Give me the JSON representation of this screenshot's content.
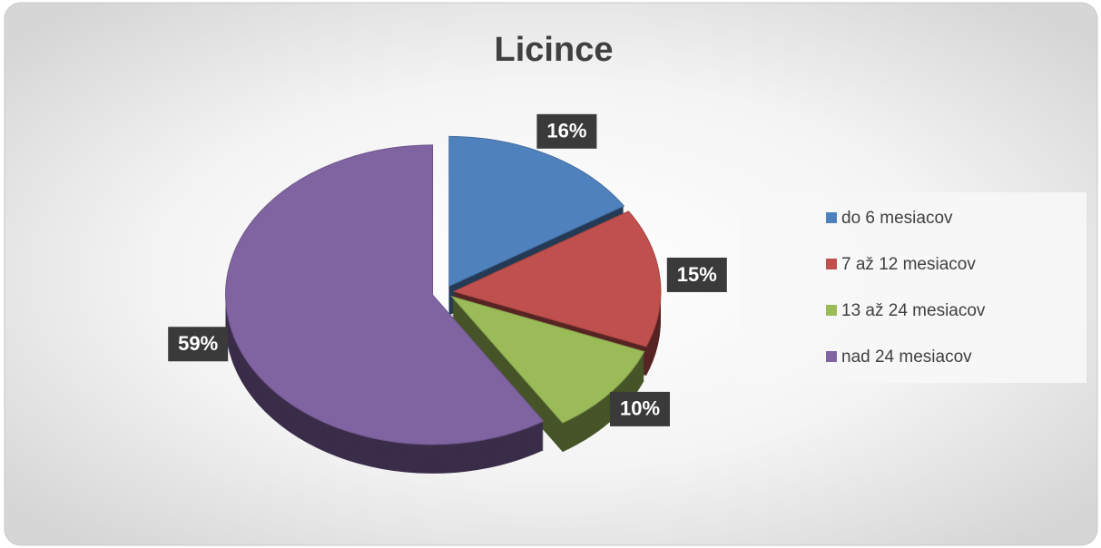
{
  "chart_data": {
    "type": "pie",
    "title": "Licince",
    "categories": [
      "do 6 mesiacov",
      "7 až 12 mesiacov",
      "13 až 24 mesiacov",
      "nad 24 mesiacov"
    ],
    "values": [
      16,
      15,
      10,
      59
    ],
    "value_labels": [
      "16%",
      "15%",
      "10%",
      "59%"
    ],
    "colors": [
      "#4f81bd",
      "#c0504d",
      "#9bbb59",
      "#8064a2"
    ],
    "legend": "right"
  }
}
